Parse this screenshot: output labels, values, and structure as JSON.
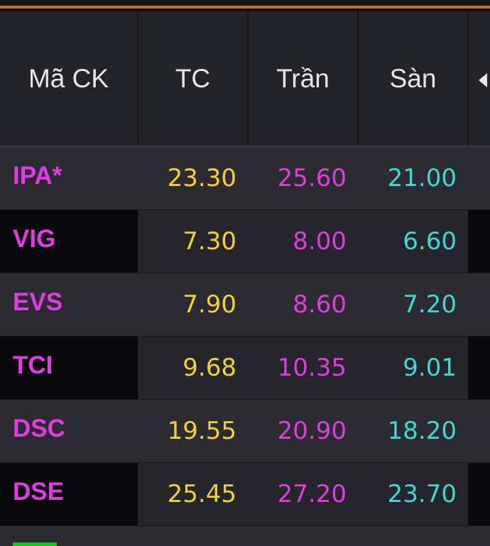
{
  "header": {
    "columns": [
      "Mã CK",
      "TC",
      "Trần",
      "Sàn"
    ]
  },
  "rows": [
    {
      "symbol": "IPA*",
      "tc": "23.30",
      "tran": "25.60",
      "san": "21.00"
    },
    {
      "symbol": "VIG",
      "tc": "7.30",
      "tran": "8.00",
      "san": "6.60"
    },
    {
      "symbol": "EVS",
      "tc": "7.90",
      "tran": "8.60",
      "san": "7.20"
    },
    {
      "symbol": "TCI",
      "tc": "9.68",
      "tran": "10.35",
      "san": "9.01"
    },
    {
      "symbol": "DSC",
      "tc": "19.55",
      "tran": "20.90",
      "san": "18.20"
    },
    {
      "symbol": "DSE",
      "tc": "25.45",
      "tran": "27.20",
      "san": "23.70"
    }
  ],
  "icons": {
    "scroll_left": "caret-left-icon"
  },
  "colors": {
    "accent_bar": "#c2692c",
    "symbol": "#e33be3",
    "reference_price": "#f2d230",
    "ceiling_price": "#dd3fdd",
    "floor_price": "#3fd9d4"
  }
}
